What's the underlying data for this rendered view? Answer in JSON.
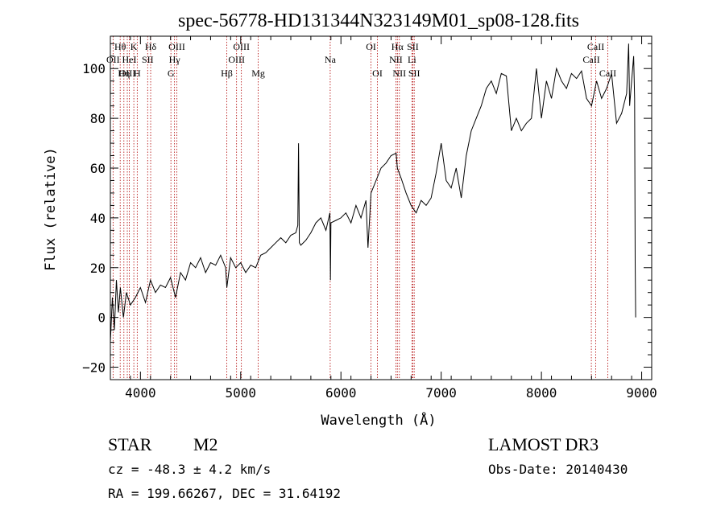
{
  "chart_data": {
    "type": "line",
    "title": "spec-56778-HD131344N323149M01_sp08-128.fits",
    "xlabel": "Wavelength (Å)",
    "ylabel": "Flux (relative)",
    "xlim": [
      3700,
      9100
    ],
    "ylim": [
      -25,
      113
    ],
    "xticks": [
      4000,
      5000,
      6000,
      7000,
      8000,
      9000
    ],
    "yticks": [
      -20,
      0,
      20,
      40,
      60,
      80,
      100
    ],
    "series": [
      {
        "name": "spectrum",
        "x": [
          3700,
          3720,
          3740,
          3760,
          3780,
          3800,
          3830,
          3860,
          3900,
          3950,
          4000,
          4050,
          4100,
          4150,
          4200,
          4250,
          4300,
          4350,
          4400,
          4450,
          4500,
          4550,
          4600,
          4650,
          4700,
          4750,
          4800,
          4850,
          4862,
          4900,
          4950,
          5000,
          5050,
          5100,
          5150,
          5200,
          5250,
          5300,
          5350,
          5400,
          5450,
          5500,
          5550,
          5570,
          5577,
          5585,
          5600,
          5650,
          5700,
          5750,
          5800,
          5850,
          5890,
          5895,
          5900,
          5950,
          6000,
          6050,
          6100,
          6150,
          6200,
          6250,
          6270,
          6300,
          6350,
          6400,
          6450,
          6500,
          6550,
          6563,
          6600,
          6650,
          6700,
          6750,
          6800,
          6850,
          6900,
          6950,
          7000,
          7050,
          7100,
          7150,
          7200,
          7250,
          7300,
          7350,
          7400,
          7450,
          7500,
          7550,
          7600,
          7650,
          7700,
          7750,
          7800,
          7850,
          7900,
          7950,
          8000,
          8050,
          8100,
          8150,
          8200,
          8250,
          8300,
          8350,
          8400,
          8450,
          8500,
          8550,
          8600,
          8650,
          8700,
          8750,
          8800,
          8850,
          8870,
          8880,
          8900,
          8920,
          8930,
          8935,
          8940
        ],
        "values": [
          -10,
          8,
          -5,
          15,
          2,
          12,
          0,
          10,
          5,
          8,
          12,
          6,
          15,
          10,
          13,
          12,
          16,
          8,
          18,
          15,
          22,
          20,
          24,
          18,
          22,
          21,
          25,
          20,
          12,
          24,
          20,
          22,
          18,
          21,
          20,
          25,
          26,
          28,
          30,
          32,
          30,
          33,
          34,
          37,
          70,
          30,
          29,
          31,
          34,
          38,
          40,
          35,
          42,
          15,
          38,
          39,
          40,
          42,
          38,
          45,
          40,
          47,
          28,
          50,
          55,
          60,
          62,
          65,
          66,
          60,
          56,
          50,
          45,
          42,
          47,
          45,
          48,
          58,
          70,
          55,
          52,
          60,
          48,
          65,
          75,
          80,
          85,
          92,
          95,
          90,
          98,
          97,
          75,
          80,
          75,
          78,
          80,
          100,
          80,
          95,
          88,
          100,
          95,
          92,
          98,
          96,
          99,
          88,
          85,
          95,
          88,
          92,
          98,
          78,
          82,
          90,
          110,
          85,
          95,
          105,
          88,
          22,
          0
        ]
      }
    ],
    "line_marks": [
      {
        "label": "Hθ",
        "x": 3798,
        "row": 1
      },
      {
        "label": "OII",
        "x": 3727,
        "row": 2
      },
      {
        "label": "OIII",
        "x": 3869,
        "row": 3
      },
      {
        "label": "K",
        "x": 3934,
        "row": 1
      },
      {
        "label": "HeI",
        "x": 3889,
        "row": 2
      },
      {
        "label": "Hη",
        "x": 3835,
        "row": 3
      },
      {
        "label": "Hδ",
        "x": 4102,
        "row": 1
      },
      {
        "label": "SII",
        "x": 4072,
        "row": 2
      },
      {
        "label": "H",
        "x": 3968,
        "row": 3
      },
      {
        "label": "OIII",
        "x": 4363,
        "row": 1
      },
      {
        "label": "Hγ",
        "x": 4340,
        "row": 2
      },
      {
        "label": "G",
        "x": 4304,
        "row": 3
      },
      {
        "label": "Hβ",
        "x": 4861,
        "row": 3
      },
      {
        "label": "OIII",
        "x": 5007,
        "row": 1
      },
      {
        "label": "OIII",
        "x": 4959,
        "row": 2
      },
      {
        "label": "Mg",
        "x": 5175,
        "row": 3
      },
      {
        "label": "Na",
        "x": 5893,
        "row": 2
      },
      {
        "label": "OI",
        "x": 6300,
        "row": 1
      },
      {
        "label": "OI",
        "x": 6364,
        "row": 3
      },
      {
        "label": "Hα",
        "x": 6563,
        "row": 1
      },
      {
        "label": "SII",
        "x": 6717,
        "row": 1
      },
      {
        "label": "NII",
        "x": 6548,
        "row": 2
      },
      {
        "label": "Li",
        "x": 6708,
        "row": 2
      },
      {
        "label": "NII",
        "x": 6583,
        "row": 3
      },
      {
        "label": "SII",
        "x": 6731,
        "row": 3
      },
      {
        "label": "CaII",
        "x": 8542,
        "row": 1
      },
      {
        "label": "CaII",
        "x": 8498,
        "row": 2
      },
      {
        "label": "CaII",
        "x": 8662,
        "row": 3
      }
    ]
  },
  "info": {
    "class": "STAR",
    "subclass": "M2",
    "survey": "LAMOST DR3",
    "cz": "cz = -48.3 ± 4.2 km/s",
    "obs_date": "Obs-Date: 20140430",
    "radec": "RA = 199.66267, DEC =  31.64192"
  }
}
